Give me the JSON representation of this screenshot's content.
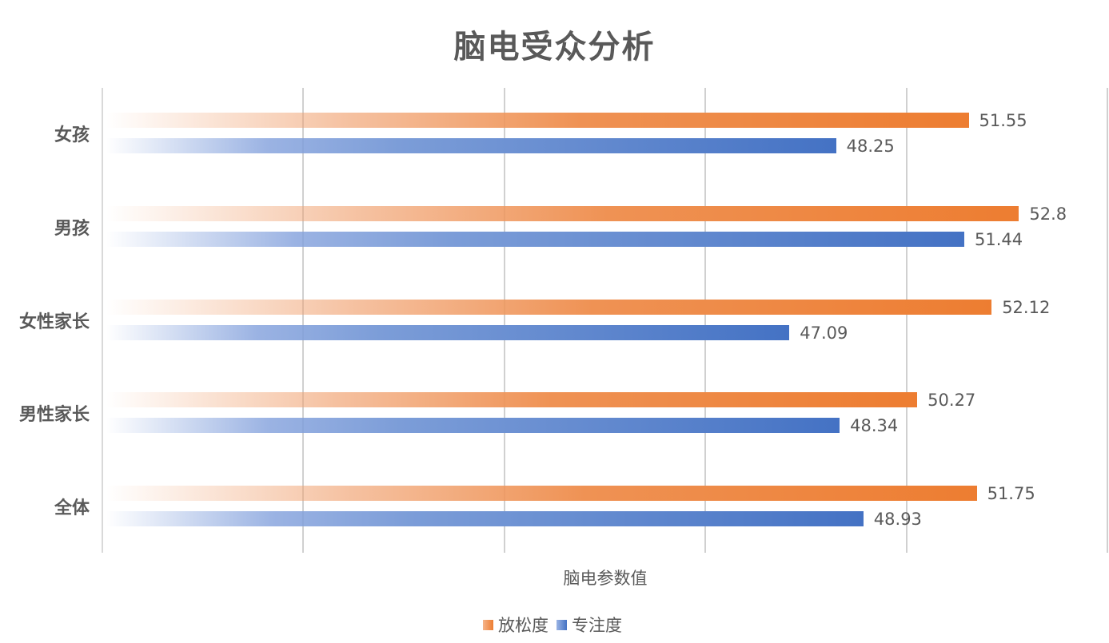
{
  "chart_data": {
    "type": "bar",
    "orientation": "horizontal",
    "title": "脑电受众分析",
    "xlabel": "脑电参数值",
    "ylabel": "",
    "xlim": [
      30,
      55
    ],
    "grid": true,
    "gridline_values": [
      30,
      35,
      40,
      45,
      50,
      55
    ],
    "tick_labels_visible": false,
    "legend_position": "bottom",
    "categories": [
      "女孩",
      "男孩",
      "女性家长",
      "男性家长",
      "全体"
    ],
    "series": [
      {
        "name": "放松度",
        "color": "#ed7d31",
        "values": [
          51.55,
          52.8,
          52.12,
          50.27,
          51.75
        ]
      },
      {
        "name": "专注度",
        "color": "#4472c4",
        "values": [
          48.25,
          51.44,
          47.09,
          48.34,
          48.93
        ]
      }
    ]
  },
  "title": "脑电受众分析",
  "axis_title": "脑电参数值",
  "legend": {
    "items": [
      {
        "label": "放松度",
        "icon": "orange-square-swatch"
      },
      {
        "label": "专注度",
        "icon": "blue-square-swatch"
      }
    ]
  },
  "labels": {
    "relax": [
      "51.55",
      "52.8",
      "52.12",
      "50.27",
      "51.75"
    ],
    "focus": [
      "48.25",
      "51.44",
      "47.09",
      "48.34",
      "48.93"
    ]
  }
}
